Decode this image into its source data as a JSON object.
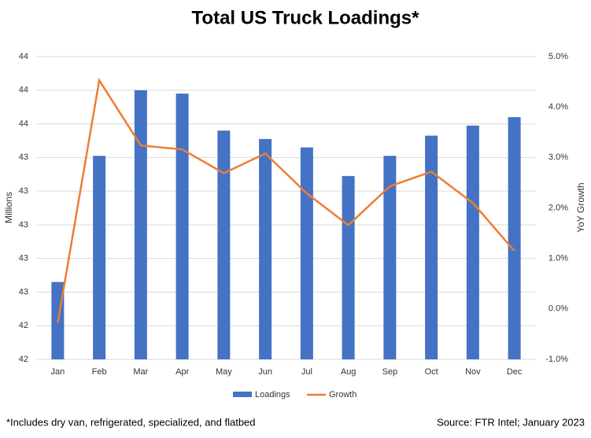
{
  "chart_data": {
    "type": "bar-line",
    "title": "Total US Truck Loadings*",
    "y_label": "Millions",
    "y2_label": "YoY Growth",
    "categories": [
      "Jan",
      "Feb",
      "Mar",
      "Apr",
      "May",
      "Jun",
      "Jul",
      "Aug",
      "Sep",
      "Oct",
      "Nov",
      "Dec"
    ],
    "series": [
      {
        "name": "Loadings",
        "type": "bar",
        "color": "#4472c4",
        "values": [
          42.66,
          43.41,
          43.8,
          43.78,
          43.56,
          43.51,
          43.46,
          43.29,
          43.41,
          43.53,
          43.59,
          43.64
        ]
      },
      {
        "name": "Growth",
        "type": "line",
        "axis": "y2",
        "color": "#ed7d31",
        "values": [
          -0.28,
          4.53,
          3.24,
          3.16,
          2.69,
          3.08,
          2.29,
          1.66,
          2.43,
          2.72,
          2.1,
          1.15
        ]
      }
    ],
    "ylim": [
      42.2,
      44.0
    ],
    "yticks": [
      {
        "value": 42.2,
        "label": "42"
      },
      {
        "value": 42.4,
        "label": "42"
      },
      {
        "value": 42.6,
        "label": "43"
      },
      {
        "value": 42.8,
        "label": "43"
      },
      {
        "value": 43.0,
        "label": "43"
      },
      {
        "value": 43.2,
        "label": "43"
      },
      {
        "value": 43.4,
        "label": "43"
      },
      {
        "value": 43.6,
        "label": "44"
      },
      {
        "value": 43.8,
        "label": "44"
      },
      {
        "value": 44.0,
        "label": "44"
      }
    ],
    "y2lim": [
      -1,
      5
    ],
    "y2ticks": [
      {
        "value": -1,
        "label": "-1.0%"
      },
      {
        "value": 0,
        "label": "0.0%"
      },
      {
        "value": 1,
        "label": "1.0%"
      },
      {
        "value": 2,
        "label": "2.0%"
      },
      {
        "value": 3,
        "label": "3.0%"
      },
      {
        "value": 4,
        "label": "4.0%"
      },
      {
        "value": 5,
        "label": "5.0%"
      }
    ],
    "grid": true,
    "legend": "bottom",
    "footnote": "*Includes dry van, refrigerated, specialized, and flatbed",
    "source": "Source: FTR Intel; January 2023"
  }
}
